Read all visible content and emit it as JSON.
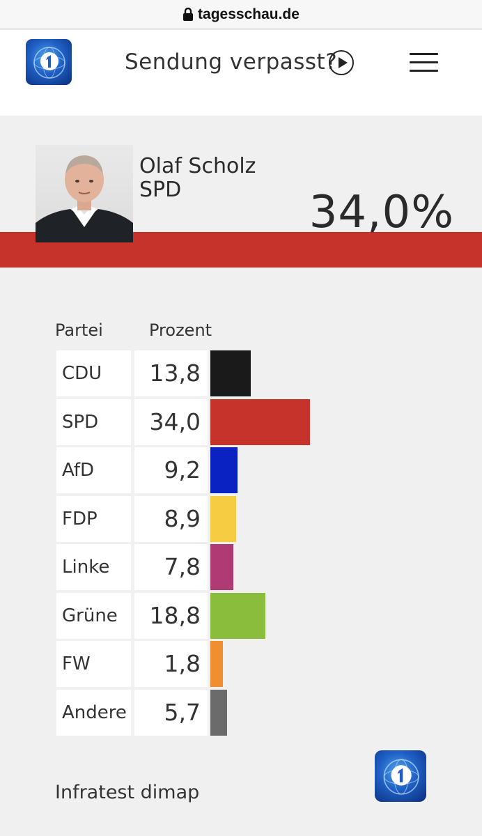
{
  "browser": {
    "url": "tagesschau.de"
  },
  "header": {
    "promo_text": "Sendung verpasst?"
  },
  "candidate": {
    "name": "Olaf Scholz",
    "party": "SPD",
    "percent": "34,0%"
  },
  "table": {
    "col_party": "Partei",
    "col_percent": "Prozent",
    "rows": [
      {
        "party": "CDU",
        "value": "13,8",
        "num": 13.8,
        "color": "#1a1a1a"
      },
      {
        "party": "SPD",
        "value": "34,0",
        "num": 34.0,
        "color": "#c6332b"
      },
      {
        "party": "AfD",
        "value": "9,2",
        "num": 9.2,
        "color": "#0b22c2"
      },
      {
        "party": "FDP",
        "value": "8,9",
        "num": 8.9,
        "color": "#f6cc43"
      },
      {
        "party": "Linke",
        "value": "7,8",
        "num": 7.8,
        "color": "#b03b74"
      },
      {
        "party": "Grüne",
        "value": "18,8",
        "num": 18.8,
        "color": "#8abd3b"
      },
      {
        "party": "FW",
        "value": "1,8",
        "num": 1.8,
        "color": "#ef8f2f"
      },
      {
        "party": "Andere",
        "value": "5,7",
        "num": 5.7,
        "color": "#6b6b6b"
      }
    ]
  },
  "source": "Infratest dimap"
}
